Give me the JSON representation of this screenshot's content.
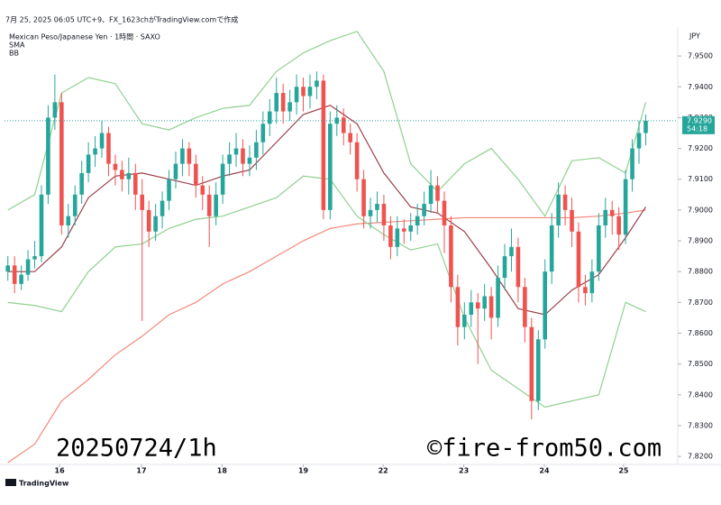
{
  "header": {
    "created": "7月 25, 2025 06:05 UTC+9、FX_1623chがTradingView.comで作成",
    "footer": "TradingView"
  },
  "chart_data": {
    "type": "candlestick",
    "title": "Mexican Peso/Japanese Yen · 1時間 · SAXO",
    "indicators": [
      "SMA",
      "BB"
    ],
    "currency": "JPY",
    "annotations": [
      "20250724/1h",
      "©fire-from50.com"
    ],
    "up_color": "#26a69a",
    "down_color": "#ef5350",
    "open": [
      7.88,
      7.882,
      7.876,
      7.879,
      7.884,
      7.885,
      7.905,
      7.93,
      7.935,
      7.895,
      7.898,
      7.905,
      7.912,
      7.918,
      7.92,
      7.925,
      7.915,
      7.913,
      7.91,
      7.912,
      7.905,
      7.9,
      7.893,
      7.898,
      7.903,
      7.91,
      7.915,
      7.92,
      7.915,
      7.908,
      7.905,
      7.898,
      7.905,
      7.915,
      7.918,
      7.92,
      7.915,
      7.917,
      7.922,
      7.928,
      7.932,
      7.938,
      7.932,
      7.935,
      7.94,
      7.937,
      7.94,
      7.942,
      7.9,
      7.928,
      7.93,
      7.925,
      7.922,
      7.91,
      7.898,
      7.9,
      7.902,
      7.895,
      7.888,
      7.894,
      7.893,
      7.895,
      7.898,
      7.902,
      7.908,
      7.903,
      7.895,
      7.875,
      7.862,
      7.866,
      7.87,
      7.868,
      7.872,
      7.865,
      7.878,
      7.885,
      7.888,
      7.875,
      7.862,
      7.838,
      7.858,
      7.88,
      7.895,
      7.905,
      7.9,
      7.893,
      7.875,
      7.873,
      7.88,
      7.895,
      7.9,
      7.898,
      7.892,
      7.91,
      7.92,
      7.925
    ],
    "high": [
      7.885,
      7.885,
      7.882,
      7.887,
      7.89,
      7.908,
      7.934,
      7.944,
      7.938,
      7.902,
      7.908,
      7.916,
      7.922,
      7.924,
      7.929,
      7.927,
      7.918,
      7.916,
      7.917,
      7.915,
      7.91,
      7.903,
      7.902,
      7.906,
      7.913,
      7.919,
      7.923,
      7.922,
      7.918,
      7.911,
      7.908,
      7.909,
      7.918,
      7.922,
      7.925,
      7.923,
      7.921,
      7.926,
      7.932,
      7.936,
      7.943,
      7.941,
      7.939,
      7.944,
      7.943,
      7.944,
      7.945,
      7.944,
      7.932,
      7.934,
      7.933,
      7.928,
      7.925,
      7.913,
      7.904,
      7.906,
      7.905,
      7.898,
      7.898,
      7.897,
      7.899,
      7.902,
      7.906,
      7.913,
      7.911,
      7.906,
      7.898,
      7.879,
      7.87,
      7.874,
      7.873,
      7.876,
      7.875,
      7.882,
      7.889,
      7.894,
      7.891,
      7.878,
      7.865,
      7.861,
      7.884,
      7.899,
      7.909,
      7.908,
      7.904,
      7.896,
      7.879,
      7.884,
      7.899,
      7.904,
      7.903,
      7.901,
      7.913,
      7.923,
      7.929,
      7.931
    ],
    "low": [
      7.877,
      7.873,
      7.874,
      7.877,
      7.881,
      7.883,
      7.902,
      7.926,
      7.892,
      7.891,
      7.895,
      7.902,
      7.909,
      7.914,
      7.917,
      7.911,
      7.908,
      7.906,
      7.905,
      7.9,
      7.864,
      7.888,
      7.89,
      7.894,
      7.9,
      7.907,
      7.911,
      7.911,
      7.904,
      7.9,
      7.888,
      7.895,
      7.902,
      7.911,
      7.914,
      7.911,
      7.911,
      7.913,
      7.918,
      7.924,
      7.928,
      7.928,
      7.929,
      7.931,
      7.932,
      7.933,
      7.936,
      7.897,
      7.897,
      7.924,
      7.921,
      7.918,
      7.906,
      7.894,
      7.894,
      7.896,
      7.89,
      7.884,
      7.885,
      7.889,
      7.89,
      7.892,
      7.895,
      7.899,
      7.899,
      7.886,
      7.87,
      7.856,
      7.858,
      7.862,
      7.85,
      7.864,
      7.858,
      7.862,
      7.874,
      7.88,
      7.87,
      7.857,
      7.832,
      7.835,
      7.855,
      7.876,
      7.891,
      7.895,
      7.888,
      7.87,
      7.869,
      7.87,
      7.877,
      7.891,
      7.892,
      7.887,
      7.889,
      7.906,
      7.915,
      7.921
    ],
    "close": [
      7.882,
      7.876,
      7.879,
      7.884,
      7.885,
      7.905,
      7.93,
      7.935,
      7.895,
      7.898,
      7.905,
      7.912,
      7.918,
      7.92,
      7.925,
      7.915,
      7.913,
      7.91,
      7.912,
      7.905,
      7.9,
      7.893,
      7.898,
      7.903,
      7.91,
      7.915,
      7.92,
      7.915,
      7.908,
      7.905,
      7.898,
      7.905,
      7.915,
      7.918,
      7.92,
      7.915,
      7.917,
      7.922,
      7.928,
      7.932,
      7.938,
      7.932,
      7.935,
      7.94,
      7.937,
      7.94,
      7.942,
      7.9,
      7.928,
      7.93,
      7.925,
      7.922,
      7.91,
      7.898,
      7.9,
      7.902,
      7.895,
      7.888,
      7.894,
      7.893,
      7.895,
      7.898,
      7.902,
      7.908,
      7.903,
      7.895,
      7.875,
      7.862,
      7.866,
      7.87,
      7.868,
      7.872,
      7.865,
      7.878,
      7.885,
      7.888,
      7.875,
      7.862,
      7.838,
      7.858,
      7.88,
      7.895,
      7.905,
      7.9,
      7.893,
      7.875,
      7.873,
      7.88,
      7.895,
      7.9,
      7.898,
      7.892,
      7.91,
      7.92,
      7.925,
      7.929
    ],
    "line_x": [
      0,
      4,
      8,
      12,
      16,
      20,
      24,
      28,
      32,
      36,
      40,
      44,
      48,
      52,
      56,
      60,
      64,
      68,
      72,
      76,
      80,
      84,
      88,
      92,
      95
    ],
    "lines": [
      {
        "color": "#f2887b",
        "values": [
          7.818,
          7.824,
          7.838,
          7.845,
          7.853,
          7.859,
          7.866,
          7.87,
          7.876,
          7.88,
          7.885,
          7.89,
          7.894,
          7.8955,
          7.896,
          7.8965,
          7.897,
          7.8975,
          7.8975,
          7.8975,
          7.8975,
          7.8975,
          7.898,
          7.899,
          7.9
        ]
      },
      {
        "color": "#8fd18f",
        "values": [
          7.9,
          7.905,
          7.938,
          7.943,
          7.941,
          7.928,
          7.926,
          7.93,
          7.933,
          7.934,
          7.945,
          7.951,
          7.955,
          7.958,
          7.945,
          7.915,
          7.906,
          7.915,
          7.92,
          7.91,
          7.898,
          7.916,
          7.917,
          7.912,
          7.935
        ]
      },
      {
        "color": "#8fd18f",
        "values": [
          7.87,
          7.869,
          7.867,
          7.88,
          7.888,
          7.889,
          7.894,
          7.897,
          7.898,
          7.901,
          7.904,
          7.911,
          7.91,
          7.898,
          7.892,
          7.887,
          7.889,
          7.865,
          7.848,
          7.842,
          7.836,
          7.838,
          7.84,
          7.87,
          7.867
        ]
      },
      {
        "color": "#9c3f48",
        "values": [
          7.88,
          7.88,
          7.888,
          7.904,
          7.911,
          7.912,
          7.91,
          7.908,
          7.911,
          7.913,
          7.922,
          7.931,
          7.934,
          7.928,
          7.912,
          7.901,
          7.899,
          7.893,
          7.881,
          7.868,
          7.866,
          7.874,
          7.879,
          7.891,
          7.901
        ]
      }
    ],
    "last_price": {
      "value": 7.929,
      "label": "7.9290"
    },
    "countdown": "54:18",
    "xlim": [
      -0.5,
      99.5
    ],
    "xticks": [
      {
        "value": 7.7,
        "label": "16"
      },
      {
        "value": 19.9,
        "label": "17"
      },
      {
        "value": 31.9,
        "label": "18"
      },
      {
        "value": 44,
        "label": "19"
      },
      {
        "value": 55.9,
        "label": "22"
      },
      {
        "value": 67.9,
        "label": "23"
      },
      {
        "value": 79.9,
        "label": "24"
      },
      {
        "value": 91.7,
        "label": "25"
      }
    ],
    "ylim": [
      7.8174,
      7.9594
    ],
    "yticks": [
      {
        "value": 7.82,
        "label": "7.8200"
      },
      {
        "value": 7.83,
        "label": "7.8300"
      },
      {
        "value": 7.84,
        "label": "7.8400"
      },
      {
        "value": 7.85,
        "label": "7.8500"
      },
      {
        "value": 7.86,
        "label": "7.8600"
      },
      {
        "value": 7.87,
        "label": "7.8700"
      },
      {
        "value": 7.88,
        "label": "7.8800"
      },
      {
        "value": 7.89,
        "label": "7.8900"
      },
      {
        "value": 7.9,
        "label": "7.9000"
      },
      {
        "value": 7.91,
        "label": "7.9100"
      },
      {
        "value": 7.92,
        "label": "7.9200"
      },
      {
        "value": 7.93,
        "label": "7.9300"
      },
      {
        "value": 7.94,
        "label": "7.9400"
      },
      {
        "value": 7.95,
        "label": "7.9500"
      }
    ],
    "grid": false
  }
}
